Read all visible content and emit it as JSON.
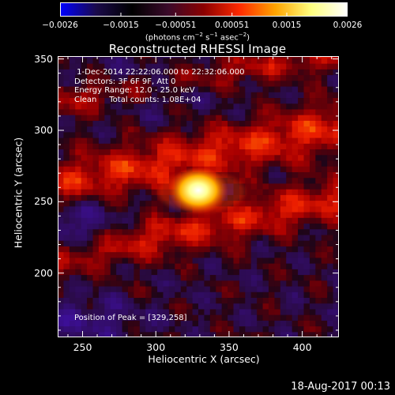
{
  "colorbar": {
    "ticks": [
      "−0.0026",
      "−0.0015",
      "−0.00051",
      "0.00051",
      "0.0015",
      "0.0026"
    ],
    "tick_values": [
      -0.0026,
      -0.0015,
      -0.00051,
      0.00051,
      0.0015,
      0.0026
    ],
    "range": [
      -0.0026,
      0.0026
    ],
    "unit_prefix": "(photons cm",
    "unit_exp1": "−2",
    "unit_mid": " s",
    "unit_exp2": "−1",
    "unit_suffix": " asec",
    "unit_exp3": "−2",
    "unit_close": ")",
    "colormap": [
      "#0000ff",
      "#1a0a4a",
      "#000000",
      "#3a0a2a",
      "#8b0000",
      "#ff2a00",
      "#ffa500",
      "#ffff80",
      "#ffffff"
    ]
  },
  "chart_data": {
    "type": "heatmap",
    "title": "Reconstructed RHESSI Image",
    "xlabel": "Heliocentric X (arcsec)",
    "ylabel": "Heliocentric Y (arcsec)",
    "xlim": [
      233,
      425
    ],
    "ylim": [
      155,
      352
    ],
    "xticks": [
      "250",
      "300",
      "350",
      "400"
    ],
    "xtick_values": [
      250,
      300,
      350,
      400
    ],
    "yticks": [
      "350",
      "300",
      "250",
      "200"
    ],
    "ytick_values": [
      350,
      300,
      250,
      200
    ],
    "peak": [
      329,
      258
    ],
    "bands": [
      {
        "center_y_at_x": [
          [
            233,
            262
          ],
          [
            425,
            303
          ]
        ],
        "width": 18,
        "level": 0.5
      },
      {
        "center_y_at_x": [
          [
            233,
            210
          ],
          [
            425,
            253
          ]
        ],
        "width": 15,
        "level": 0.45
      },
      {
        "center_y_at_x": [
          [
            233,
            320
          ],
          [
            425,
            355
          ]
        ],
        "width": 12,
        "level": 0.35
      }
    ],
    "annotations": [
      "1-Dec-2014 22:22:06.000 to 22:32:06.000",
      "Detectors: 3F 6F 9F, Att 0",
      "Energy Range: 12.0 - 25.0 keV",
      "Clean     Total counts: 1.08E+04"
    ],
    "peak_label": "Position of Peak = [329,258]"
  },
  "footer": "18-Aug-2017 00:13"
}
